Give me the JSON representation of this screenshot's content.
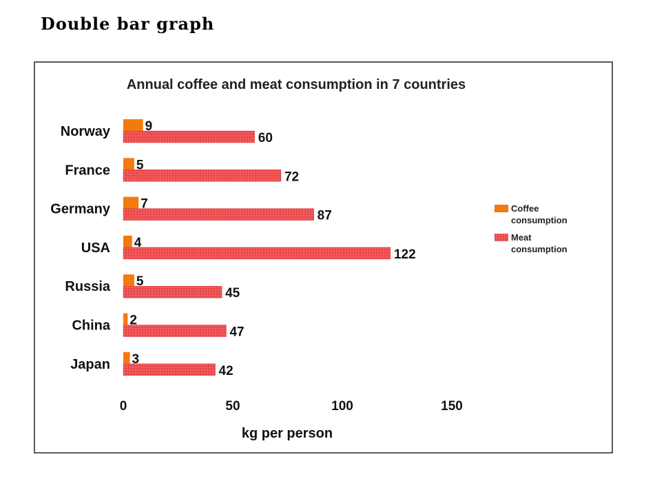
{
  "heading": "Double bar graph",
  "chart_data": {
    "type": "bar",
    "orientation": "horizontal",
    "title": "Annual coffee and meat consumption in 7 countries",
    "xlabel": "kg per person",
    "ylabel": "",
    "categories": [
      "Norway",
      "France",
      "Germany",
      "USA",
      "Russia",
      "China",
      "Japan"
    ],
    "series": [
      {
        "name": "Coffee consumption",
        "color": "#f47a0e",
        "values": [
          9,
          5,
          7,
          4,
          5,
          2,
          3
        ]
      },
      {
        "name": "Meat consumption",
        "color": "#ee4d4f",
        "values": [
          60,
          72,
          87,
          122,
          45,
          47,
          42
        ]
      }
    ],
    "xlim": [
      0,
      150
    ],
    "xticks": [
      "0",
      "50",
      "100",
      "150"
    ],
    "grid": false,
    "legend": "right",
    "legend_lines": [
      [
        "Coffee",
        "consumption"
      ],
      [
        "Meat",
        "consumption"
      ]
    ]
  }
}
